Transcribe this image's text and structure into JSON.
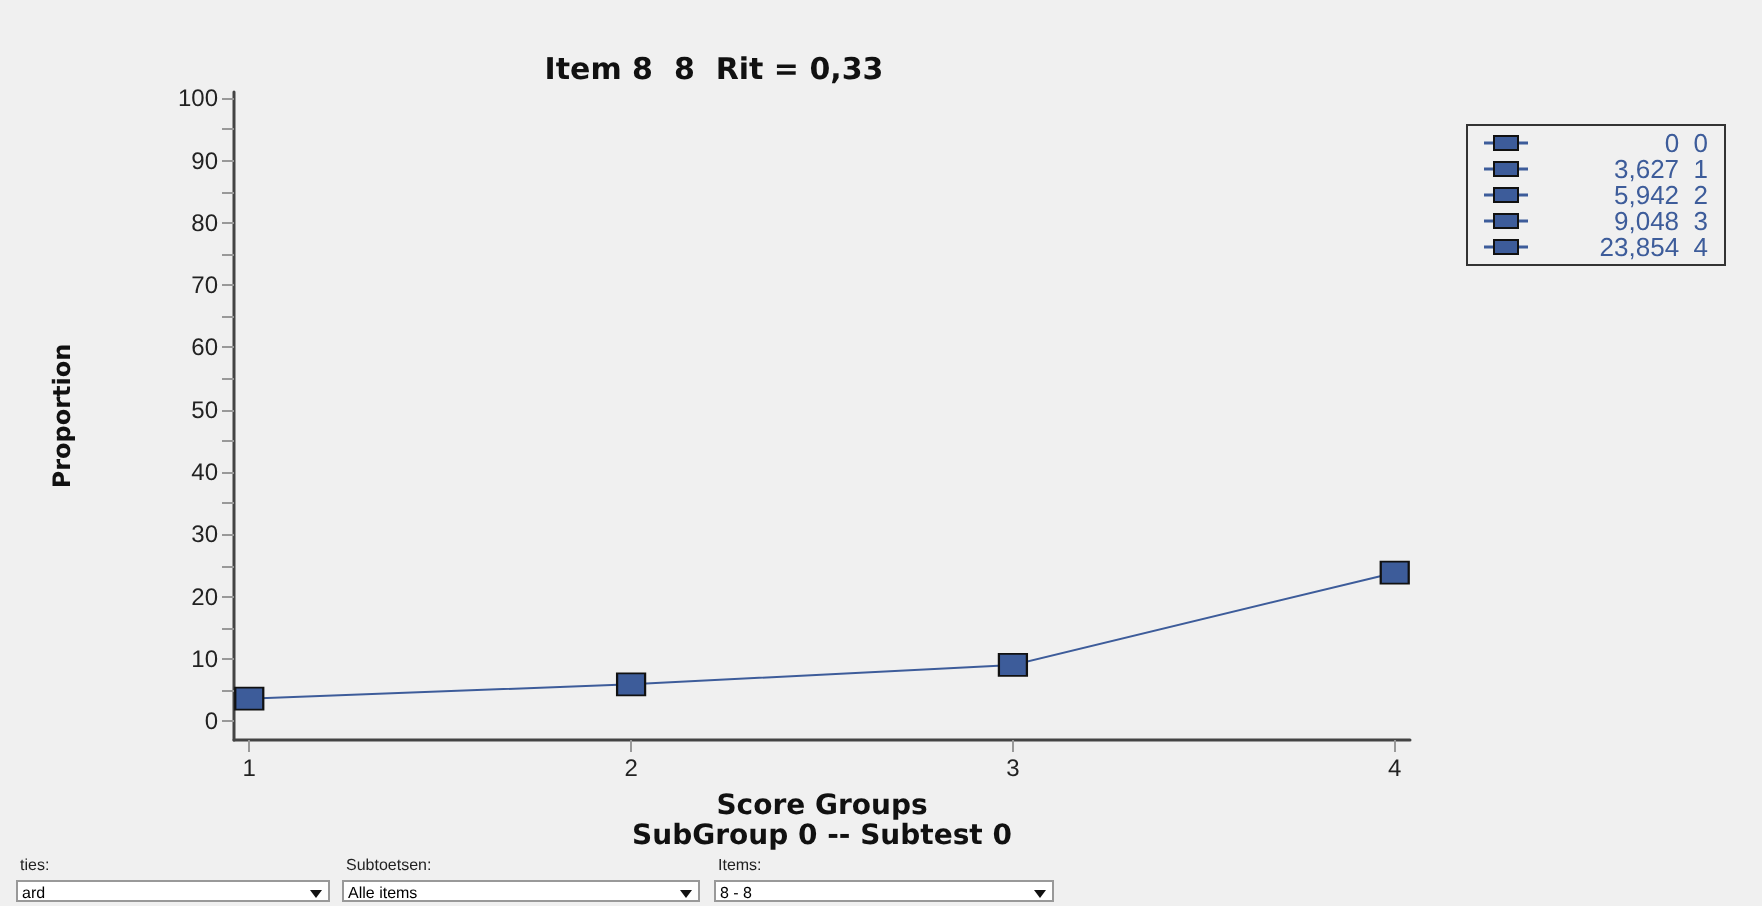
{
  "chart_data": {
    "type": "line",
    "title": "Item 8  8  Rit = 0,33",
    "xlabel": "Score Groups",
    "ylabel": "Proportion",
    "x": [
      1,
      2,
      3,
      4
    ],
    "series": [
      {
        "color": "#3d5c9a",
        "values": [
          3.627,
          5.942,
          9.048,
          23.854
        ]
      }
    ],
    "xlim": [
      0.96,
      4.04
    ],
    "xticks": [
      1,
      2,
      3,
      4
    ],
    "ylim": [
      -3,
      101
    ],
    "yticks": [
      0,
      {
        "value": 5,
        "label": null
      },
      10,
      {
        "value": 15,
        "label": null
      },
      20,
      {
        "value": 25,
        "label": null
      },
      30,
      {
        "value": 35,
        "label": null
      },
      40,
      {
        "value": 45,
        "label": null
      },
      50,
      {
        "value": 55,
        "label": null
      },
      60,
      {
        "value": 65,
        "label": null
      },
      70,
      {
        "value": 75,
        "label": null
      },
      80,
      {
        "value": 85,
        "label": null
      },
      90,
      {
        "value": 95,
        "label": null
      },
      100
    ],
    "grid": false,
    "marker": "square",
    "line_style": "solid",
    "annotations": [
      "SubGroup 0 -- Subtest 0",
      "0  0",
      "3,627  1",
      "5,942  2",
      "9,048  3",
      "23,854  4",
      "ties:",
      "ard",
      "Subtoetsen:",
      "Alle items",
      "Items:",
      "8 - 8"
    ]
  }
}
